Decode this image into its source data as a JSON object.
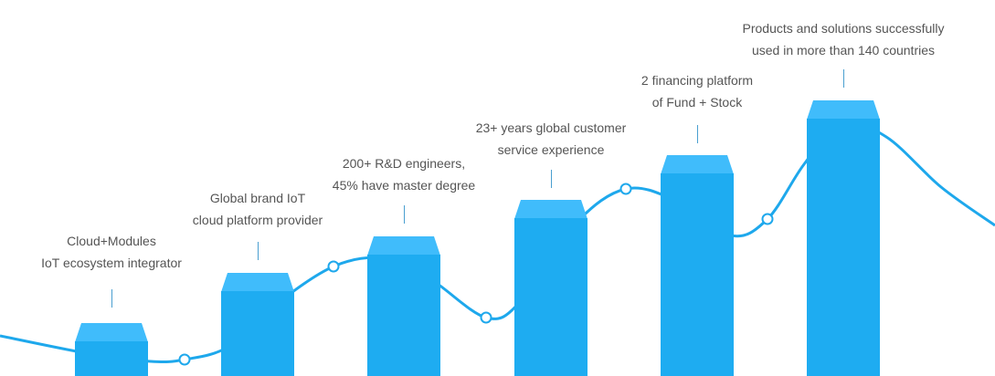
{
  "colors": {
    "line": "#1ea8ec",
    "bar_face": "#1eacf1",
    "bar_cap": "#40bcfb",
    "tick": "#4a9fd0",
    "text": "#555555"
  },
  "milestones": [
    {
      "lines": [
        "Cloud+Modules",
        "IoT ecosystem integrator"
      ]
    },
    {
      "lines": [
        "Global brand IoT",
        "cloud platform provider"
      ]
    },
    {
      "lines": [
        "200+ R&D engineers,",
        "45% have master degree"
      ]
    },
    {
      "lines": [
        "23+ years global customer",
        "service experience"
      ]
    },
    {
      "lines": [
        "2 financing platform",
        "of Fund + Stock"
      ]
    },
    {
      "lines": [
        "Products and solutions successfully",
        "used in more than 140 countries"
      ]
    }
  ]
}
